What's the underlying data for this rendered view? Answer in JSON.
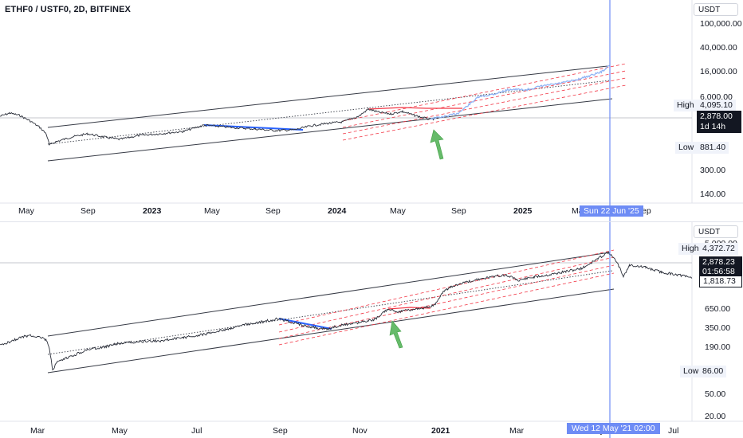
{
  "top": {
    "title": "ETHF0 / USTF0, 2D, BITFINEX",
    "currency": "USDT",
    "price_scale": [
      "100,000.00",
      "40,000.00",
      "16,000.00",
      "6,000.00",
      "300.00",
      "140.00"
    ],
    "high_label": "High",
    "high_value": "4,095.10",
    "last_price": "2,878.00",
    "countdown": "1d 14h",
    "low_label": "Low",
    "low_value": "881.40",
    "time_axis": [
      "May",
      "Sep",
      "2023",
      "May",
      "Sep",
      "2024",
      "May",
      "Sep",
      "2025",
      "Ma",
      "Sep"
    ],
    "crosshair_date": "Sun 22 Jun '25"
  },
  "bottom": {
    "currency": "USDT",
    "price_scale": [
      "5,000.00",
      "1,250.00",
      "650.00",
      "350.00",
      "190.00",
      "50.00",
      "20.00"
    ],
    "high_label": "High",
    "high_value": "4,372.72",
    "last_price": "2,878.23",
    "countdown": "01:56:58",
    "prev_close": "1,818.73",
    "low_label": "Low",
    "low_value": "86.00",
    "time_axis": [
      "Mar",
      "May",
      "Jul",
      "Sep",
      "Nov",
      "2021",
      "Mar",
      "May",
      "Jul"
    ],
    "crosshair_date": "Wed 12 May '21   02:00"
  },
  "colors": {
    "price_line": "#2a2e39",
    "channel": "#363a45",
    "dashed": "#f23645",
    "blue_line": "#2962ff",
    "projection": "#90b4f5",
    "arrow": "#66bb6a",
    "crosshair": "#6e8cf5",
    "crosshair_label_bg": "#6e8cf5"
  },
  "chart_data": [
    {
      "type": "line",
      "title": "ETHF0 / USTF0, 2D, BITFINEX",
      "y_scale": "log",
      "ylim": [
        100,
        120000
      ],
      "ticks_y": [
        100000,
        40000,
        16000,
        6000,
        300,
        140
      ],
      "x_ticks": [
        "May",
        "Sep",
        "2023",
        "May",
        "Sep",
        "2024",
        "May",
        "Sep",
        "2025",
        "Ma",
        "Sep"
      ],
      "series": [
        {
          "x": [
            "2022-03",
            "2022-04",
            "2022-05",
            "2022-06",
            "2022-07",
            "2022-08",
            "2022-09",
            "2022-10",
            "2022-11",
            "2022-12",
            "2023-01",
            "2023-02",
            "2023-03",
            "2023-04",
            "2023-05",
            "2023-06",
            "2023-07",
            "2023-08",
            "2023-09",
            "2023-10",
            "2023-11",
            "2023-12",
            "2024-01",
            "2024-02",
            "2024-03",
            "2024-04",
            "2024-05",
            "2024-06",
            "2024-07"
          ],
          "values": [
            3200,
            3300,
            2200,
            1150,
            1300,
            1700,
            1350,
            1300,
            1250,
            1200,
            1550,
            1650,
            1750,
            1900,
            1850,
            1850,
            1900,
            1650,
            1600,
            1800,
            2050,
            2300,
            2400,
            2900,
            3900,
            3100,
            3500,
            3400,
            2878
          ]
        },
        {
          "x": [
            "2024-07",
            "2024-09",
            "2024-11",
            "2025-01",
            "2025-03",
            "2025-05",
            "2025-06"
          ],
          "values": [
            2878,
            3500,
            6800,
            8500,
            11000,
            15000,
            23000
          ]
        }
      ],
      "annotations": [
        "High 4,095.10",
        "Low 881.40",
        "Last 2,878.00"
      ]
    },
    {
      "type": "line",
      "y_scale": "log",
      "ylim": [
        18,
        6000
      ],
      "ticks_y": [
        5000,
        1250,
        650,
        350,
        190,
        50,
        20
      ],
      "x_ticks": [
        "Mar",
        "May",
        "Jul",
        "Sep",
        "Nov",
        "2021",
        "Mar",
        "May",
        "Jul"
      ],
      "series": [
        {
          "x": [
            "2019-12",
            "2020-01",
            "2020-02",
            "2020-03",
            "2020-04",
            "2020-05",
            "2020-06",
            "2020-07",
            "2020-08",
            "2020-09",
            "2020-10",
            "2020-11",
            "2020-12",
            "2021-01",
            "2021-02",
            "2021-03",
            "2021-04",
            "2021-05",
            "2021-06",
            "2021-07"
          ],
          "values": [
            130,
            170,
            250,
            110,
            180,
            200,
            230,
            280,
            400,
            370,
            380,
            480,
            620,
            1300,
            1600,
            1750,
            2300,
            4100,
            2300,
            1900
          ]
        }
      ],
      "annotations": [
        "High 4,372.72",
        "Low 86.00",
        "Last 2,878.23",
        "1,818.73"
      ]
    }
  ]
}
